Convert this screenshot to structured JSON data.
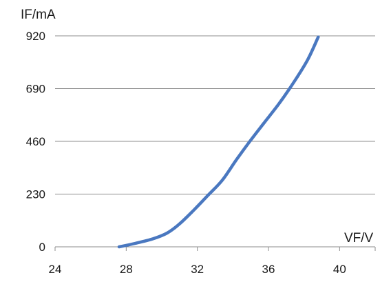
{
  "chart_data": {
    "type": "line",
    "title": "",
    "xlabel": "VF/V",
    "ylabel": "IF/mA",
    "xlim": [
      24,
      42
    ],
    "ylim": [
      0,
      920
    ],
    "xticks": [
      "24",
      "28",
      "32",
      "36",
      "40"
    ],
    "yticks": [
      "0",
      "230",
      "460",
      "690",
      "920"
    ],
    "grid": "horizontal",
    "series": [
      {
        "color": "#4a78c0",
        "points": [
          {
            "x": 27.6,
            "y": 0
          },
          {
            "x": 28.5,
            "y": 15
          },
          {
            "x": 29.5,
            "y": 35
          },
          {
            "x": 30.3,
            "y": 60
          },
          {
            "x": 31.0,
            "y": 100
          },
          {
            "x": 31.8,
            "y": 160
          },
          {
            "x": 32.6,
            "y": 225
          },
          {
            "x": 33.4,
            "y": 290
          },
          {
            "x": 34.2,
            "y": 380
          },
          {
            "x": 35.0,
            "y": 465
          },
          {
            "x": 35.8,
            "y": 545
          },
          {
            "x": 36.6,
            "y": 625
          },
          {
            "x": 37.4,
            "y": 715
          },
          {
            "x": 38.2,
            "y": 815
          },
          {
            "x": 38.8,
            "y": 915
          }
        ]
      }
    ]
  }
}
